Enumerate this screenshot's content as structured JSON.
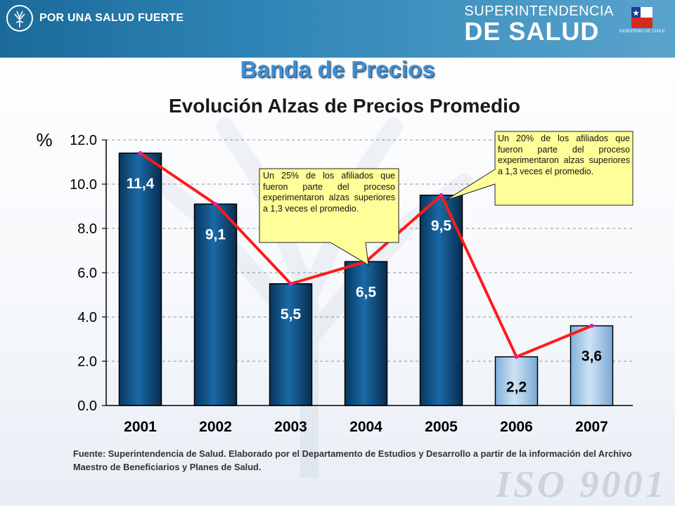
{
  "header": {
    "slogan": "POR UNA SALUD FUERTE",
    "org_line1": "SUPERINTENDENCIA",
    "org_line2": "DE SALUD",
    "gov_label": "GOBIERNO DE CHILE",
    "tree_icon": "tree-logo-icon",
    "flag_icon": "chile-flag-icon"
  },
  "page": {
    "title": "Banda de Precios",
    "subtitle": "Evolución Alzas de Precios Promedio",
    "source": "Fuente:  Superintendencia de Salud. Elaborado por el Departamento de Estudios y Desarrollo a partir de la información del Archivo Maestro de Beneficiarios y Planes de Salud.",
    "watermark": "ISO 9001"
  },
  "callouts": {
    "c2004": "Un 25% de los afiliados que fueron parte del proceso experimentaron alzas superiores a 1,3 veces el promedio.",
    "c2005": "Un 20% de los afiliados que fueron parte del proceso experimentaron alzas superiores a 1,3 veces el promedio."
  },
  "chart_data": {
    "type": "bar",
    "categories": [
      "2001",
      "2002",
      "2003",
      "2004",
      "2005",
      "2006",
      "2007"
    ],
    "values": [
      11.4,
      9.1,
      5.5,
      6.5,
      9.5,
      2.2,
      3.6
    ],
    "data_labels": [
      "11,4",
      "9,1",
      "5,5",
      "6,5",
      "9,5",
      "2,2",
      "3,6"
    ],
    "ylabel": "%",
    "ylim": [
      0,
      12
    ],
    "yticks": [
      0,
      2,
      4,
      6,
      8,
      10,
      12
    ],
    "ytick_labels": [
      "0.0",
      "2.0",
      "4.0",
      "6.0",
      "8.0",
      "10.0",
      "12.0"
    ],
    "line_overlay": true,
    "colors": {
      "bar_dark": "#0b4f84",
      "bar_light": "#a9cdeb",
      "line": "#ff1a1a",
      "marker": "#e020c0"
    }
  }
}
